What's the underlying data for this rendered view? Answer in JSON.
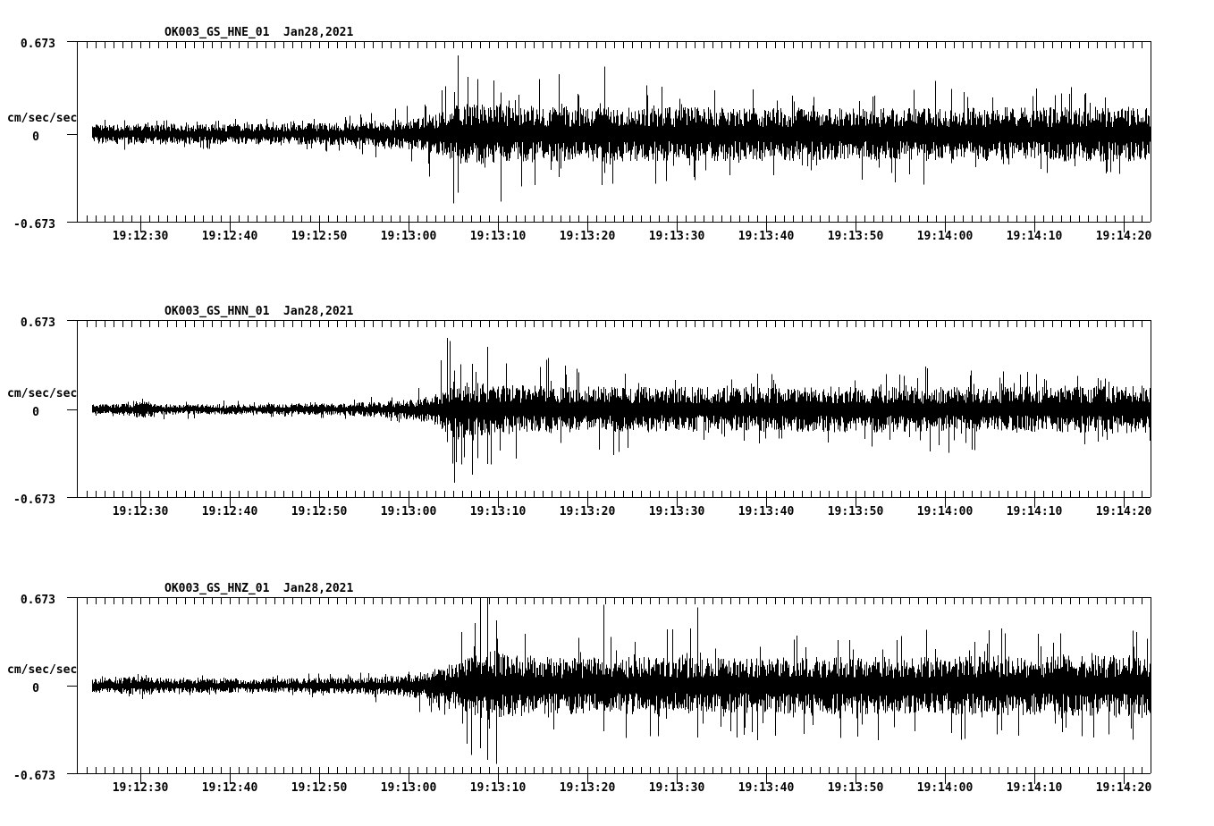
{
  "page": {
    "background_color": "#ffffff",
    "trace_color": "#000000"
  },
  "panels": [
    {
      "title": "OK003_GS_HNE_01  Jan28,2021",
      "channel": "HNE",
      "y_top_label": "0.673",
      "y_zero_label": "0",
      "y_bottom_label": "-0.673",
      "y_units": "cm/sec/sec"
    },
    {
      "title": "OK003_GS_HNN_01  Jan28,2021",
      "channel": "HNN",
      "y_top_label": "0.673",
      "y_zero_label": "0",
      "y_bottom_label": "-0.673",
      "y_units": "cm/sec/sec"
    },
    {
      "title": "OK003_GS_HNZ_01  Jan28,2021",
      "channel": "HNZ",
      "y_top_label": "0.673",
      "y_zero_label": "0",
      "y_bottom_label": "-0.673",
      "y_units": "cm/sec/sec"
    }
  ],
  "chart_data": {
    "type": "line",
    "variant": "seismogram-3-component-acceleration",
    "station": "OK003",
    "network": "GS",
    "location": "01",
    "date": "Jan28,2021",
    "ylabel": "cm/sec/sec",
    "ylim": [
      -0.673,
      0.673
    ],
    "y_tick_labels": [
      "0.673",
      "0",
      "-0.673"
    ],
    "x_tick_labels": [
      "19:12:30",
      "19:12:40",
      "19:12:50",
      "19:13:00",
      "19:13:10",
      "19:13:20",
      "19:13:30",
      "19:13:40",
      "19:13:50",
      "19:14:00",
      "19:14:10",
      "19:14:20"
    ],
    "x_major_tick_interval_seconds": 10,
    "x_minor_tick_interval_seconds": 1,
    "envelope_x_units": "pixel offset from left axis, 10 px = 1 second",
    "envelope_amp_units": "cm/sec/sec (half-amplitude about zero line)",
    "series": [
      {
        "name": "OK003_GS_HNE_01",
        "channel": "HNE",
        "body": [
          [
            17,
            0.062
          ],
          [
            60,
            0.069
          ],
          [
            200,
            0.069
          ],
          [
            300,
            0.076
          ],
          [
            344,
            0.089
          ],
          [
            384,
            0.11
          ],
          [
            399,
            0.137
          ],
          [
            414,
            0.179
          ],
          [
            434,
            0.206
          ],
          [
            474,
            0.192
          ],
          [
            554,
            0.185
          ],
          [
            664,
            0.179
          ],
          [
            764,
            0.179
          ],
          [
            864,
            0.172
          ],
          [
            964,
            0.179
          ],
          [
            1201,
            0.185
          ]
        ],
        "spike": [
          [
            17,
            0.11
          ],
          [
            64,
            0.124
          ],
          [
            214,
            0.117
          ],
          [
            294,
            0.137
          ],
          [
            344,
            0.192
          ],
          [
            384,
            0.275
          ],
          [
            404,
            0.378
          ],
          [
            426,
            0.604
          ],
          [
            439,
            0.446
          ],
          [
            474,
            0.412
          ],
          [
            514,
            0.426
          ],
          [
            564,
            0.398
          ],
          [
            614,
            0.412
          ],
          [
            664,
            0.378
          ],
          [
            714,
            0.357
          ],
          [
            764,
            0.378
          ],
          [
            814,
            0.33
          ],
          [
            864,
            0.343
          ],
          [
            914,
            0.378
          ],
          [
            964,
            0.412
          ],
          [
            1014,
            0.343
          ],
          [
            1064,
            0.378
          ],
          [
            1201,
            0.357
          ]
        ],
        "peaks": [
          [
            426,
            0.604,
            0.45
          ],
          [
            474,
            0.32,
            0.52
          ],
          [
            539,
            0.46,
            0.33
          ],
          [
            590,
            0.52,
            0.3
          ]
        ]
      },
      {
        "name": "OK003_GS_HNN_01",
        "channel": "HNN",
        "body": [
          [
            17,
            0.034
          ],
          [
            44,
            0.034
          ],
          [
            59,
            0.055
          ],
          [
            79,
            0.055
          ],
          [
            94,
            0.034
          ],
          [
            214,
            0.034
          ],
          [
            294,
            0.041
          ],
          [
            344,
            0.055
          ],
          [
            374,
            0.069
          ],
          [
            394,
            0.089
          ],
          [
            411,
            0.151
          ],
          [
            424,
            0.206
          ],
          [
            444,
            0.179
          ],
          [
            474,
            0.165
          ],
          [
            554,
            0.158
          ],
          [
            664,
            0.151
          ],
          [
            764,
            0.151
          ],
          [
            864,
            0.158
          ],
          [
            964,
            0.151
          ],
          [
            1201,
            0.158
          ]
        ],
        "spike": [
          [
            17,
            0.062
          ],
          [
            44,
            0.062
          ],
          [
            64,
            0.103
          ],
          [
            84,
            0.082
          ],
          [
            214,
            0.062
          ],
          [
            314,
            0.082
          ],
          [
            364,
            0.137
          ],
          [
            394,
            0.206
          ],
          [
            411,
            0.549
          ],
          [
            424,
            0.563
          ],
          [
            439,
            0.412
          ],
          [
            459,
            0.481
          ],
          [
            474,
            0.378
          ],
          [
            514,
            0.412
          ],
          [
            564,
            0.378
          ],
          [
            614,
            0.343
          ],
          [
            664,
            0.33
          ],
          [
            714,
            0.309
          ],
          [
            764,
            0.33
          ],
          [
            814,
            0.288
          ],
          [
            864,
            0.309
          ],
          [
            914,
            0.33
          ],
          [
            964,
            0.343
          ],
          [
            1014,
            0.309
          ],
          [
            1064,
            0.288
          ],
          [
            1201,
            0.309
          ]
        ],
        "peaks": [
          [
            414,
            0.549,
            0.25
          ],
          [
            422,
            0.3,
            0.563
          ],
          [
            442,
            0.35,
            0.5
          ],
          [
            459,
            0.48,
            0.42
          ]
        ]
      },
      {
        "name": "OK003_GS_HNZ_01",
        "channel": "HNZ",
        "body": [
          [
            17,
            0.048
          ],
          [
            44,
            0.048
          ],
          [
            59,
            0.062
          ],
          [
            84,
            0.062
          ],
          [
            99,
            0.048
          ],
          [
            214,
            0.048
          ],
          [
            314,
            0.055
          ],
          [
            354,
            0.069
          ],
          [
            384,
            0.089
          ],
          [
            404,
            0.117
          ],
          [
            424,
            0.165
          ],
          [
            444,
            0.206
          ],
          [
            459,
            0.234
          ],
          [
            484,
            0.206
          ],
          [
            534,
            0.192
          ],
          [
            614,
            0.192
          ],
          [
            714,
            0.185
          ],
          [
            814,
            0.192
          ],
          [
            914,
            0.192
          ],
          [
            1014,
            0.199
          ],
          [
            1201,
            0.206
          ]
        ],
        "spike": [
          [
            17,
            0.082
          ],
          [
            44,
            0.082
          ],
          [
            64,
            0.11
          ],
          [
            94,
            0.089
          ],
          [
            214,
            0.082
          ],
          [
            314,
            0.103
          ],
          [
            354,
            0.151
          ],
          [
            384,
            0.22
          ],
          [
            404,
            0.343
          ],
          [
            424,
            0.481
          ],
          [
            444,
            0.653
          ],
          [
            459,
            0.673
          ],
          [
            474,
            0.515
          ],
          [
            499,
            0.446
          ],
          [
            534,
            0.481
          ],
          [
            564,
            0.426
          ],
          [
            594,
            0.495
          ],
          [
            614,
            0.412
          ],
          [
            644,
            0.398
          ],
          [
            674,
            0.481
          ],
          [
            714,
            0.412
          ],
          [
            764,
            0.426
          ],
          [
            814,
            0.398
          ],
          [
            864,
            0.412
          ],
          [
            914,
            0.426
          ],
          [
            964,
            0.446
          ],
          [
            1014,
            0.467
          ],
          [
            1064,
            0.412
          ],
          [
            1201,
            0.426
          ]
        ],
        "peaks": [
          [
            451,
            0.653,
            0.48
          ],
          [
            459,
            0.673,
            0.57
          ],
          [
            469,
            0.5,
            0.6
          ],
          [
            589,
            0.62,
            0.35
          ],
          [
            694,
            0.6,
            0.4
          ]
        ]
      }
    ]
  }
}
